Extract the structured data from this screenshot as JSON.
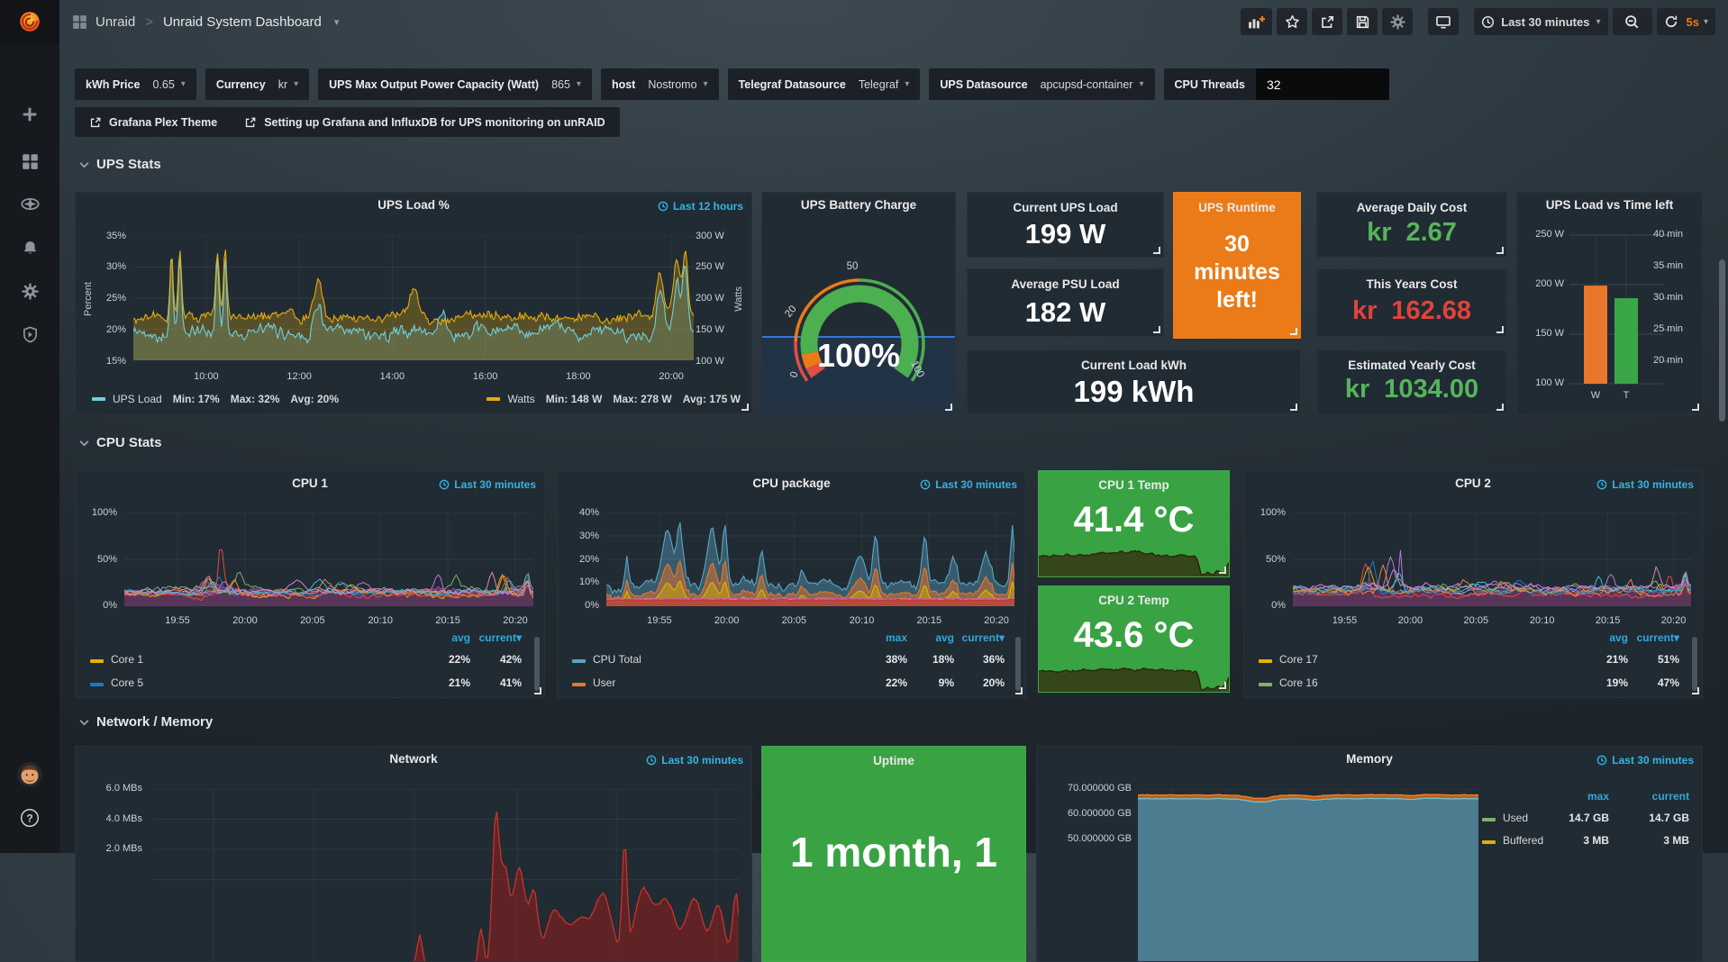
{
  "app": {
    "accent_blue": "#33b5e5",
    "orange": "#eb7b18",
    "stat_green": "#56b45d",
    "stat_red": "#e2423b",
    "panel_green": "#39a344"
  },
  "nav": {
    "breadcrumb_root": "Unraid",
    "breadcrumb_current": "Unraid System Dashboard",
    "time_range": "Last 30 minutes",
    "refresh_interval": "5s"
  },
  "icons": {
    "caret_down": "▾",
    "breadcrumb_separator": ">"
  },
  "variables": [
    {
      "label": "kWh Price",
      "value": "0.65"
    },
    {
      "label": "Currency",
      "value": "kr"
    },
    {
      "label": "UPS Max Output Power Capacity (Watt)",
      "value": "865"
    },
    {
      "label": "host",
      "value": "Nostromo"
    },
    {
      "label": "Telegraf Datasource",
      "value": "Telegraf"
    },
    {
      "label": "UPS Datasource",
      "value": "apcupsd-container"
    },
    {
      "label": "CPU Threads",
      "value": "32"
    }
  ],
  "links": [
    {
      "label": "Grafana Plex Theme"
    },
    {
      "label": "Setting up Grafana and InfluxDB for UPS monitoring on unRAID"
    }
  ],
  "sections": {
    "ups": "UPS Stats",
    "cpu": "CPU Stats",
    "net": "Network / Memory"
  },
  "stats": {
    "current_ups_load": {
      "title": "Current UPS Load",
      "value": "199 W"
    },
    "average_psu_load": {
      "title": "Average PSU Load",
      "value": "182 W"
    },
    "current_load_kwh": {
      "title": "Current Load kWh",
      "value": "199 kWh"
    },
    "ups_runtime": {
      "title": "UPS Runtime",
      "lines": [
        "30",
        "minutes",
        "left!"
      ],
      "bg": "#eb7b18"
    },
    "average_daily_cost": {
      "title": "Average Daily Cost",
      "prefix": "kr",
      "value": "2.67",
      "color": "#56b45d"
    },
    "this_years_cost": {
      "title": "This Years Cost",
      "prefix": "kr",
      "value": "162.68",
      "color": "#e2423b"
    },
    "estimated_yearly_cost": {
      "title": "Estimated Yearly Cost",
      "prefix": "kr",
      "value": "1034.00",
      "color": "#56b45d"
    },
    "cpu1_temp": {
      "title": "CPU 1 Temp",
      "value": "41.4 °C",
      "bg": "#39a344"
    },
    "cpu2_temp": {
      "title": "CPU 2 Temp",
      "value": "43.6 °C",
      "bg": "#39a344"
    },
    "uptime": {
      "title": "Uptime",
      "value": "1 month, 1",
      "bg": "#39a344"
    }
  },
  "chart_data": [
    {
      "id": "ups-load",
      "type": "line",
      "title": "UPS Load %",
      "time_range": "Last 12 hours",
      "y_left": {
        "label": "Percent",
        "ticks": [
          "35%",
          "30%",
          "25%",
          "20%",
          "15%"
        ],
        "min": 15,
        "max": 35
      },
      "y_right": {
        "label": "Watts",
        "ticks": [
          "300 W",
          "250 W",
          "200 W",
          "150 W",
          "100 W"
        ],
        "min": 100,
        "max": 300
      },
      "x_ticks": [
        {
          "label": "10:00",
          "p": 0.13
        },
        {
          "label": "12:00",
          "p": 0.296
        },
        {
          "label": "14:00",
          "p": 0.462
        },
        {
          "label": "16:00",
          "p": 0.628
        },
        {
          "label": "18:00",
          "p": 0.794
        },
        {
          "label": "20:00",
          "p": 0.96
        }
      ],
      "series": [
        {
          "name": "UPS Load",
          "color": "#6ed0e0",
          "fill": "rgba(110,208,224,0.22)",
          "axis": "left",
          "stats": [
            "Min: 17%",
            "Max: 32%",
            "Avg: 20%"
          ],
          "shape": {
            "base": 19.5,
            "noise": 1.7,
            "clamp": [
              17,
              32
            ],
            "bumps": [
              [
                0.068,
                0.004,
                12
              ],
              [
                0.083,
                0.004,
                12
              ],
              [
                0.15,
                0.004,
                12
              ],
              [
                0.164,
                0.004,
                12
              ],
              [
                0.33,
                0.01,
                5
              ],
              [
                0.55,
                0.008,
                3
              ],
              [
                0.94,
                0.01,
                6
              ],
              [
                0.97,
                0.008,
                9
              ],
              [
                0.985,
                0.006,
                10
              ]
            ]
          }
        },
        {
          "name": "Watts",
          "color": "#e5ac0e",
          "fill": "rgba(229,172,14,0.28)",
          "axis": "right",
          "stats": [
            "Min: 148 W",
            "Max: 278 W",
            "Avg: 175 W"
          ],
          "shape": {
            "base": 170,
            "noise": 13,
            "clamp": [
              148,
              278
            ],
            "bumps": [
              [
                0.068,
                0.004,
                100
              ],
              [
                0.083,
                0.004,
                105
              ],
              [
                0.15,
                0.004,
                100
              ],
              [
                0.164,
                0.004,
                108
              ],
              [
                0.33,
                0.01,
                55
              ],
              [
                0.5,
                0.012,
                40
              ],
              [
                0.94,
                0.01,
                70
              ],
              [
                0.97,
                0.008,
                90
              ],
              [
                0.985,
                0.006,
                100
              ]
            ]
          }
        }
      ]
    },
    {
      "id": "battery-gauge",
      "type": "gauge",
      "title": "UPS Battery Charge",
      "value": 100,
      "display": "100%",
      "min": 0,
      "max": 100,
      "scale_labels": [
        "0",
        "20",
        "50",
        "100"
      ],
      "thresholds_thin": [
        [
          0,
          0.15,
          "#e24d42"
        ],
        [
          0.15,
          0.5,
          "#eb7b18"
        ],
        [
          0.5,
          1,
          "#4caf50"
        ]
      ],
      "thresholds_thick": [
        [
          0,
          0.04,
          "#e24d42"
        ],
        [
          0.04,
          0.1,
          "#eb7b18"
        ],
        [
          0.1,
          1,
          "#4caf50"
        ]
      ],
      "sparkline_color": "#3274d9"
    },
    {
      "id": "load-vs-time",
      "type": "bar",
      "title": "UPS Load vs Time left",
      "y_left": {
        "ticks": [
          "250 W",
          "200 W",
          "150 W",
          "100 W"
        ],
        "min": 100,
        "max": 250
      },
      "y_right": {
        "ticks": [
          "40 min",
          "35 min",
          "30 min",
          "25 min",
          "20 min"
        ],
        "min": 20,
        "max": 40
      },
      "bars": [
        {
          "label": "W",
          "color": "#e8762c",
          "value": 199,
          "axis": "left"
        },
        {
          "label": "T",
          "color": "#3aa648",
          "value": 30,
          "axis": "right"
        }
      ]
    },
    {
      "id": "cpu1",
      "type": "line",
      "title": "CPU 1",
      "time_range": "Last 30 minutes",
      "y_left": {
        "ticks": [
          "100%",
          "50%",
          "0%"
        ],
        "min": 0,
        "max": 100
      },
      "x_ticks": [
        {
          "label": "19:55",
          "p": 0.13
        },
        {
          "label": "20:00",
          "p": 0.295
        },
        {
          "label": "20:05",
          "p": 0.46
        },
        {
          "label": "20:10",
          "p": 0.626
        },
        {
          "label": "20:15",
          "p": 0.791
        },
        {
          "label": "20:20",
          "p": 0.956
        }
      ],
      "legend_cols": [
        "avg",
        "current"
      ],
      "series": [
        {
          "name": "Core 1",
          "color": "#e0b400",
          "stats": {
            "avg": "22%",
            "current": "42%"
          }
        },
        {
          "name": "Core 5",
          "color": "#1f78c1",
          "stats": {
            "avg": "21%",
            "current": "41%"
          }
        }
      ],
      "extra_colors": [
        "#e24d42",
        "#b877d9",
        "#7eb26d",
        "#ef843c",
        "#36c2d9",
        "#d683ce"
      ],
      "spike": {
        "p": 0.235,
        "amp": 72,
        "color": "#e24d42"
      }
    },
    {
      "id": "cpu-package",
      "type": "line",
      "title": "CPU package",
      "time_range": "Last 30 minutes",
      "y_left": {
        "ticks": [
          "40%",
          "30%",
          "20%",
          "10%",
          "0%"
        ],
        "min": 0,
        "max": 40
      },
      "x_ticks": [
        {
          "label": "19:55",
          "p": 0.13
        },
        {
          "label": "20:00",
          "p": 0.295
        },
        {
          "label": "20:05",
          "p": 0.46
        },
        {
          "label": "20:10",
          "p": 0.626
        },
        {
          "label": "20:15",
          "p": 0.791
        },
        {
          "label": "20:20",
          "p": 0.956
        }
      ],
      "legend_cols": [
        "max",
        "avg",
        "current"
      ],
      "series": [
        {
          "name": "CPU Total",
          "color": "#5aa5c4",
          "stats": {
            "max": "38%",
            "avg": "18%",
            "current": "36%"
          }
        },
        {
          "name": "User",
          "color": "#e8762c",
          "stats": {
            "max": "22%",
            "avg": "9%",
            "current": "20%"
          }
        }
      ],
      "total_shape": {
        "base": 9,
        "noise": 3.5,
        "clamp": [
          4,
          38
        ],
        "bumps": [
          [
            0.05,
            0.006,
            13
          ],
          [
            0.15,
            0.018,
            22
          ],
          [
            0.18,
            0.01,
            24
          ],
          [
            0.26,
            0.016,
            24
          ],
          [
            0.29,
            0.008,
            26
          ],
          [
            0.38,
            0.008,
            12
          ],
          [
            0.48,
            0.01,
            6
          ],
          [
            0.62,
            0.018,
            15
          ],
          [
            0.66,
            0.01,
            20
          ],
          [
            0.78,
            0.009,
            22
          ],
          [
            0.85,
            0.012,
            13
          ],
          [
            0.93,
            0.014,
            13
          ],
          [
            0.995,
            0.006,
            26
          ]
        ]
      }
    },
    {
      "id": "cpu2",
      "type": "line",
      "title": "CPU 2",
      "time_range": "Last 30 minutes",
      "y_left": {
        "ticks": [
          "100%",
          "50%",
          "0%"
        ],
        "min": 0,
        "max": 100
      },
      "x_ticks": [
        {
          "label": "19:55",
          "p": 0.13
        },
        {
          "label": "20:00",
          "p": 0.295
        },
        {
          "label": "20:05",
          "p": 0.46
        },
        {
          "label": "20:10",
          "p": 0.626
        },
        {
          "label": "20:15",
          "p": 0.791
        },
        {
          "label": "20:20",
          "p": 0.956
        }
      ],
      "legend_cols": [
        "avg",
        "current"
      ],
      "series": [
        {
          "name": "Core 17",
          "color": "#e0b400",
          "stats": {
            "avg": "21%",
            "current": "51%"
          }
        },
        {
          "name": "Core 16",
          "color": "#7eb26d",
          "stats": {
            "avg": "19%",
            "current": "47%"
          }
        }
      ],
      "extra_colors": [
        "#e24d42",
        "#b877d9",
        "#36c2d9",
        "#ef843c",
        "#1f78c1",
        "#d683ce"
      ],
      "spike": {
        "p": 0.27,
        "amp": 82,
        "color": "#b877d9"
      }
    },
    {
      "id": "temp-spark",
      "type": "sparkline",
      "fill": "rgba(52,46,14,0.8)",
      "line": "rgba(39,33,9,0.9)",
      "shape": {
        "base": 0.6,
        "noise": 0.07,
        "clamp": [
          0.06,
          0.78
        ],
        "bumps": [
          [
            0.45,
            0.18,
            0.08
          ],
          [
            0.86,
            0.018,
            -0.6
          ],
          [
            0.91,
            0.04,
            -0.5
          ],
          [
            0.97,
            0.03,
            -0.42
          ]
        ]
      }
    },
    {
      "id": "network",
      "type": "line",
      "title": "Network",
      "time_range": "Last 30 minutes",
      "y_left": {
        "ticks": [
          "6.0 MBs",
          "4.0 MBs",
          "2.0 MBs"
        ],
        "min": 0,
        "max": 6
      },
      "x_grid": [
        0.103,
        0.274,
        0.446,
        0.622,
        0.791,
        0.962
      ],
      "series": [
        {
          "color": "#cc3228",
          "fill": "rgba(150,30,25,0.55)",
          "shape": {
            "base": 0.18,
            "noise": 0.12,
            "clamp": [
              0.05,
              5.6
            ],
            "bumps": [
              [
                0.455,
                0.006,
                1.0
              ],
              [
                0.56,
                0.006,
                1.2
              ],
              [
                0.585,
                0.008,
                4.8
              ],
              [
                0.6,
                0.01,
                3.0
              ],
              [
                0.625,
                0.015,
                3.2
              ],
              [
                0.65,
                0.01,
                2.2
              ],
              [
                0.685,
                0.02,
                1.7
              ],
              [
                0.73,
                0.03,
                1.5
              ],
              [
                0.77,
                0.02,
                2.1
              ],
              [
                0.805,
                0.006,
                3.8
              ],
              [
                0.835,
                0.02,
                2.3
              ],
              [
                0.875,
                0.025,
                2.1
              ],
              [
                0.925,
                0.02,
                2.2
              ],
              [
                0.965,
                0.015,
                2.0
              ],
              [
                0.995,
                0.008,
                2.3
              ]
            ]
          }
        }
      ]
    },
    {
      "id": "memory",
      "type": "line",
      "title": "Memory",
      "time_range": "Last 30 minutes",
      "y_left": {
        "ticks": [
          "70.000000 GB",
          "60.000000 GB",
          "50.000000 GB"
        ]
      },
      "x_grid": [
        0.1,
        0.27,
        0.45,
        0.62,
        0.79,
        0.96
      ],
      "legend_cols": [
        "max",
        "current"
      ],
      "series": [
        {
          "name": "Used",
          "color": "#7eb26d",
          "stats": {
            "max": "14.7 GB",
            "current": "14.7 GB"
          }
        },
        {
          "name": "Buffered",
          "color": "#e5ac0e",
          "stats": {
            "max": "3 MB",
            "current": "3 MB"
          }
        }
      ],
      "areas": {
        "teal_fill": "#4b7c90",
        "teal_line": "#6fc3d7",
        "orange_fill": "#b96216",
        "orange_line": "#f28033",
        "level_gb": 66,
        "band_gb": 1.5,
        "shape": {
          "base": 66.2,
          "noise": 0.18,
          "clamp": [
            63.5,
            66.9
          ],
          "bumps": [
            [
              0.36,
              0.05,
              -1.4
            ],
            [
              0.52,
              0.04,
              -0.5
            ],
            [
              0.8,
              0.03,
              -0.3
            ]
          ]
        }
      }
    }
  ]
}
